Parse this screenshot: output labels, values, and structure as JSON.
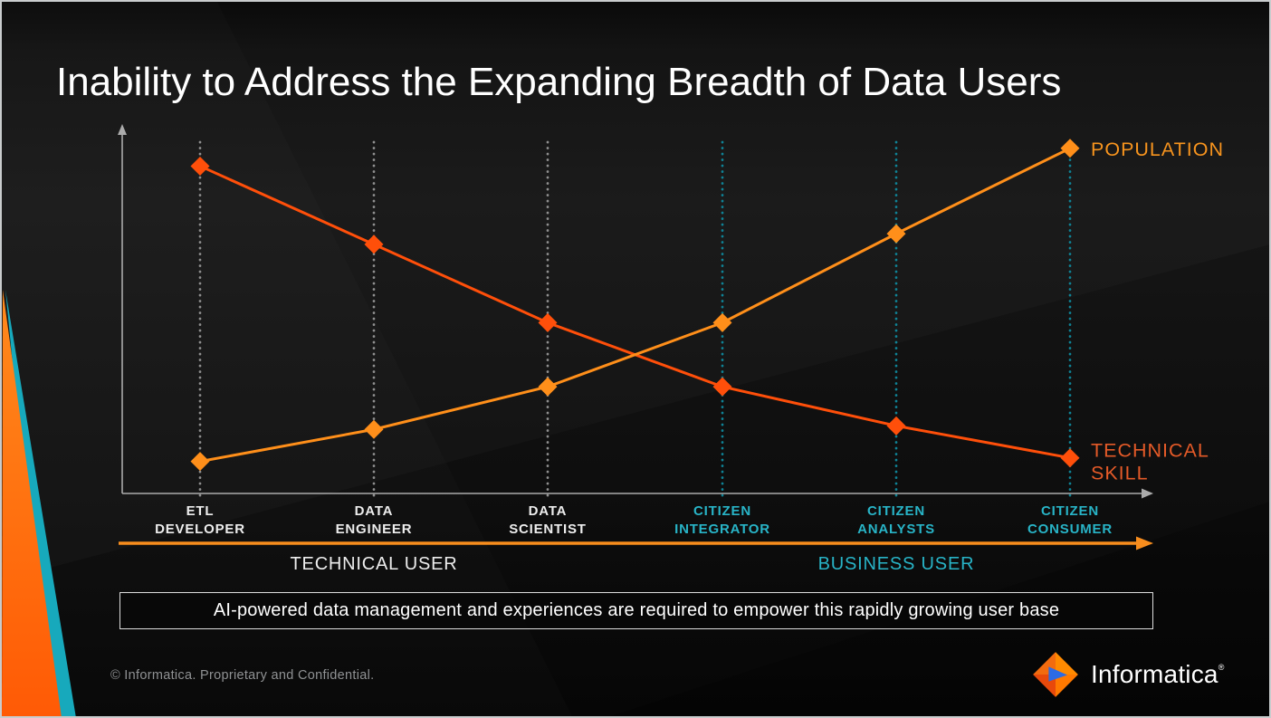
{
  "slide": {
    "title": "Inability to Address the Expanding Breadth of Data Users",
    "banner_text": "AI-powered data management and experiences are required to empower this rapidly growing user base",
    "footer_text": "© Informatica. Proprietary and Confidential.",
    "logo_text": "Informatica",
    "logo_mark": "®"
  },
  "colors": {
    "background": "#0D0D0D",
    "title": "#FFFFFF",
    "axis": "#ABABAB",
    "grid_technical": "#8F8F8F",
    "grid_business": "#0F8396",
    "category_technical": "#EDEDED",
    "category_business": "#28B4C7",
    "bottom_arrow": "#F88D1D",
    "edge_orange": "#FF6A00",
    "edge_teal": "#17A9BC",
    "banner_border": "#DDDDDD",
    "footer": "#8F9193"
  },
  "chart_data": {
    "type": "line",
    "title": "",
    "xlabel": "",
    "ylabel": "",
    "ylim": [
      0,
      100
    ],
    "grid": "vertical-dotted",
    "legend_position": "right-of-line-ends",
    "categories": [
      "ETL DEVELOPER",
      "DATA ENGINEER",
      "DATA SCIENTIST",
      "CITIZEN INTEGRATOR",
      "CITIZEN ANALYSTS",
      "CITIZEN CONSUMER"
    ],
    "category_lines": [
      [
        "ETL",
        "DEVELOPER"
      ],
      [
        "DATA",
        "ENGINEER"
      ],
      [
        "DATA",
        "SCIENTIST"
      ],
      [
        "CITIZEN",
        "INTEGRATOR"
      ],
      [
        "CITIZEN",
        "ANALYSTS"
      ],
      [
        "CITIZEN",
        "CONSUMER"
      ]
    ],
    "category_groups": [
      0,
      0,
      0,
      1,
      1,
      1
    ],
    "series": [
      {
        "name": "TECHNICAL SKILL",
        "values": [
          92,
          70,
          48,
          30,
          19,
          10
        ],
        "color": "#FF4F0A",
        "label_color": "#E45A28",
        "marker": "diamond"
      },
      {
        "name": "POPULATION",
        "values": [
          9,
          18,
          30,
          48,
          73,
          97
        ],
        "color": "#FF8F1A",
        "label_color": "#F7941E",
        "marker": "diamond"
      }
    ],
    "groups": [
      {
        "label": "TECHNICAL USER",
        "color": "#EDEDED"
      },
      {
        "label": "BUSINESS USER",
        "color": "#28B4C7"
      }
    ]
  }
}
